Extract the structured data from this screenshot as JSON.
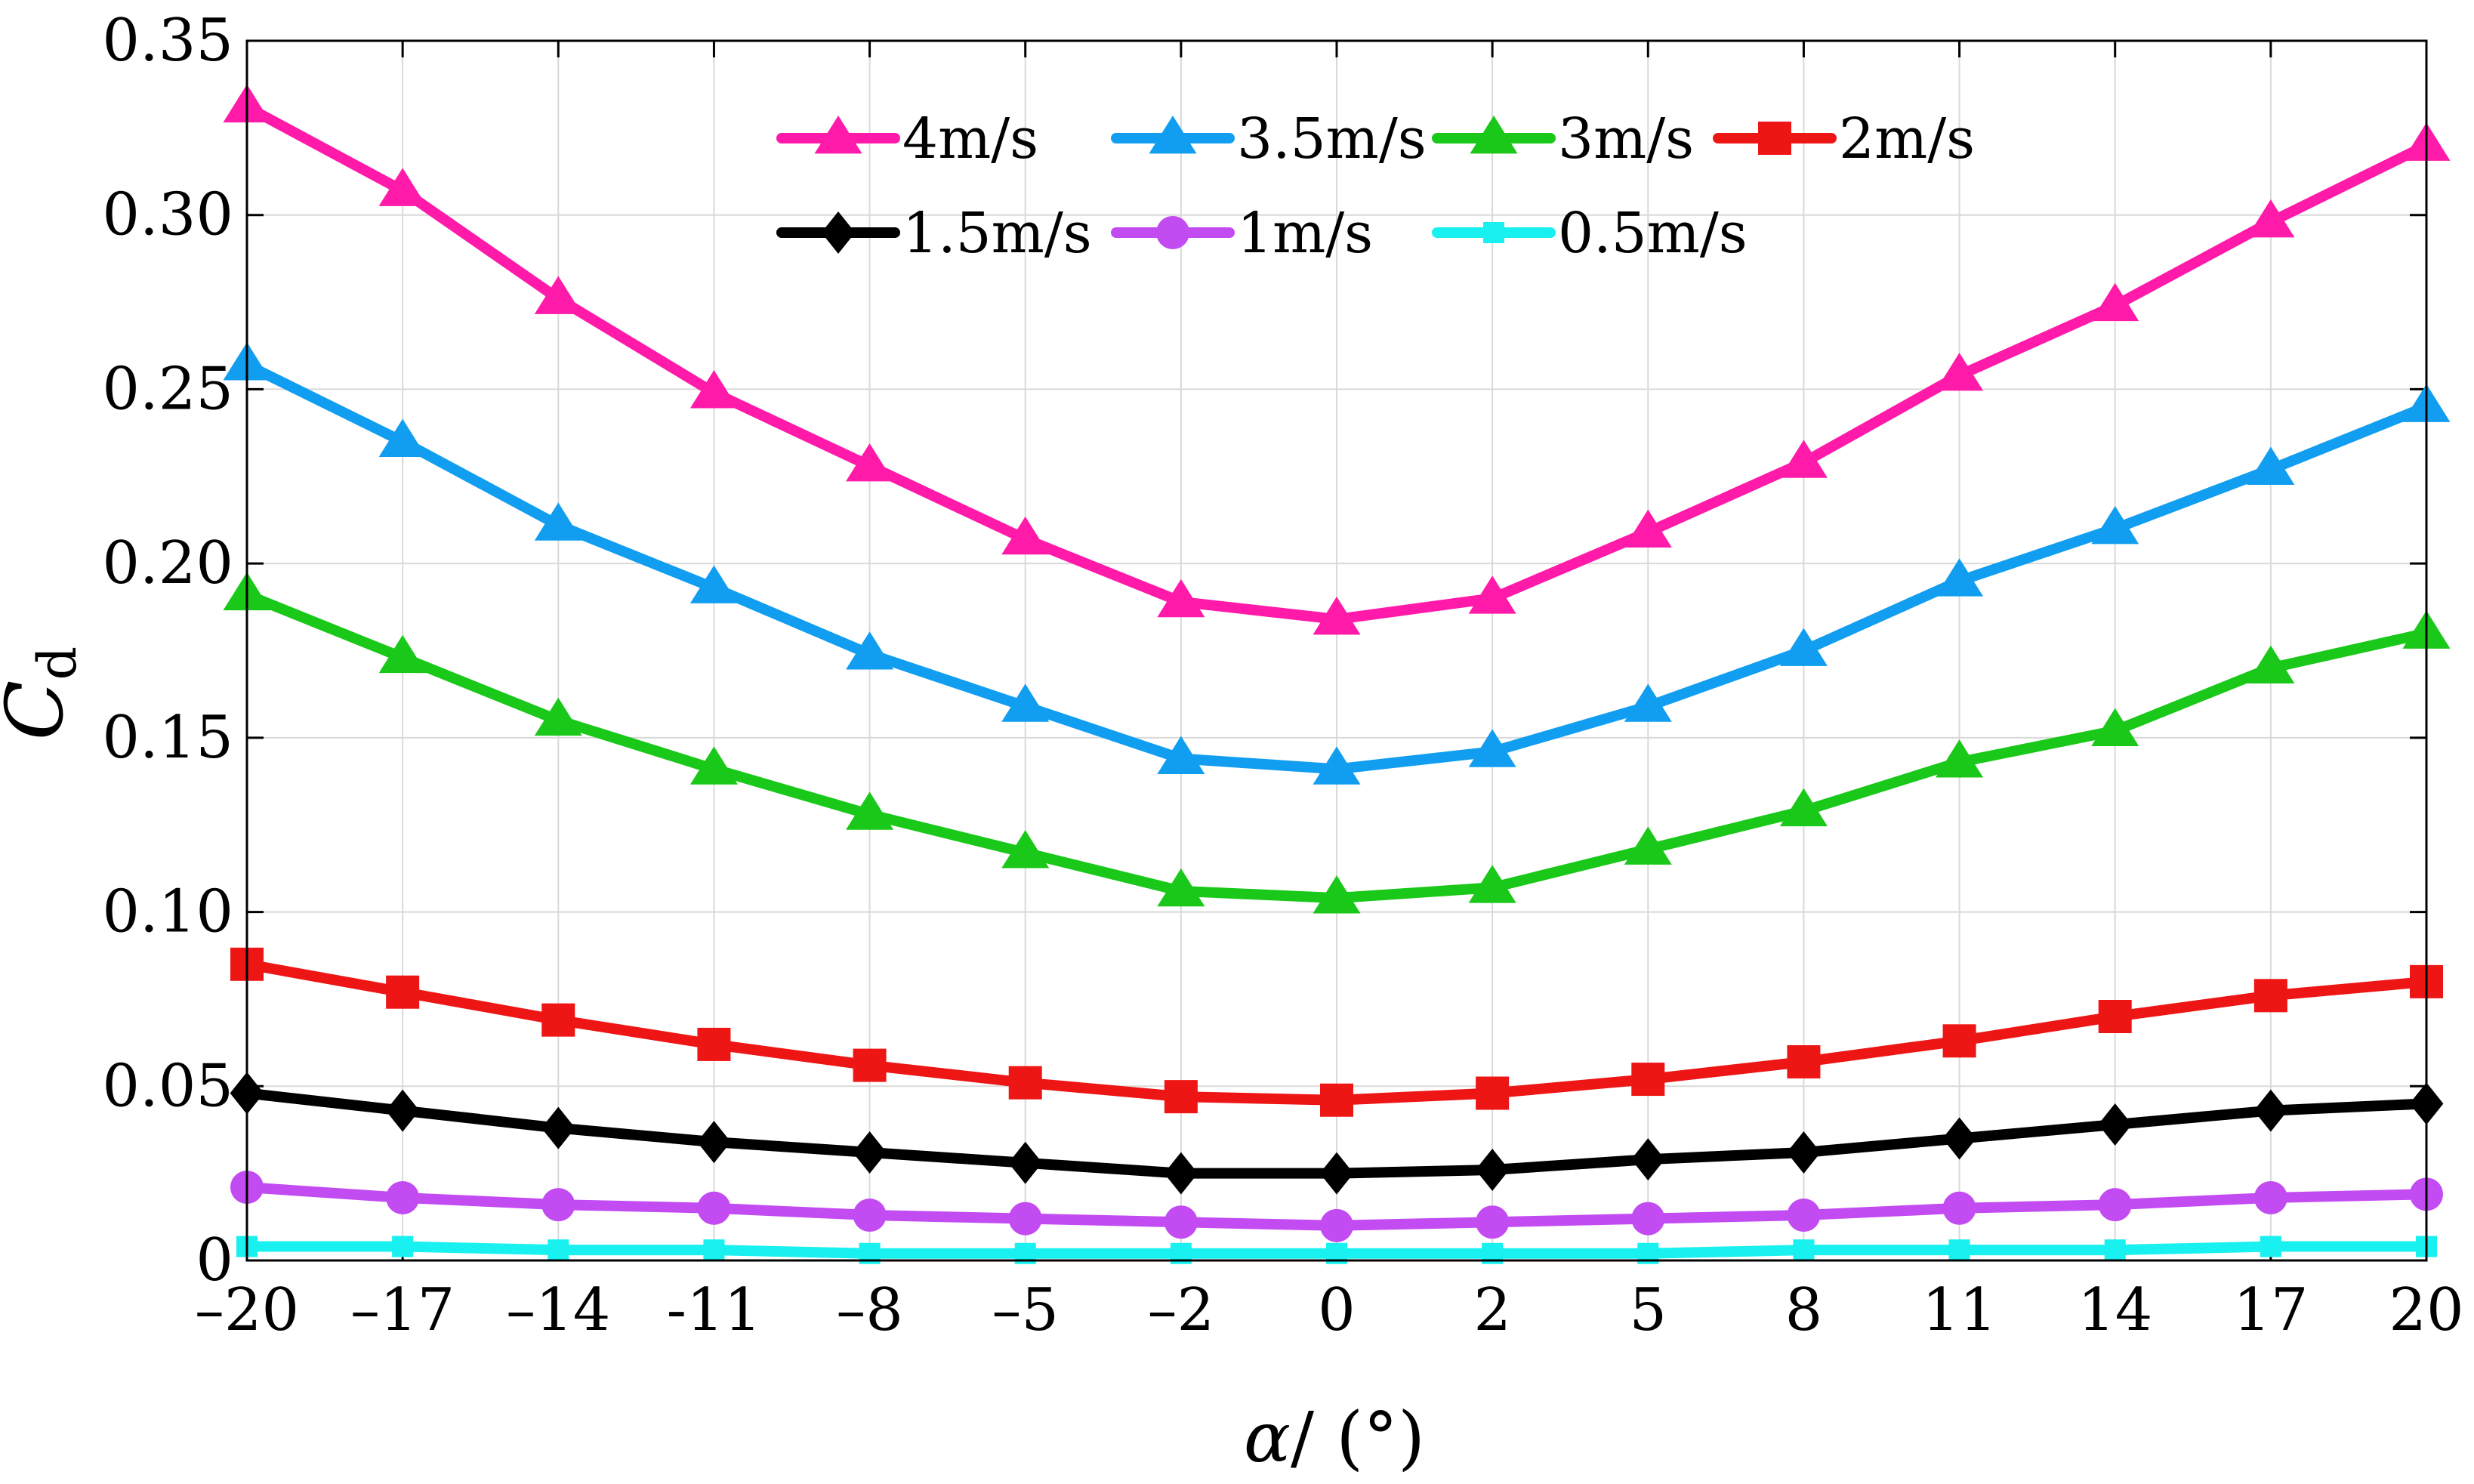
{
  "chart_data": {
    "type": "line",
    "xlabel": "α/ (°)",
    "ylabel": "C_d",
    "ylabel_main": "C",
    "ylabel_sub": "d",
    "xlabel_main": "α",
    "xlabel_rest": "/ (°)",
    "x": [
      -20,
      -17,
      -14,
      -11,
      -8,
      -5,
      -2,
      0,
      2,
      5,
      8,
      11,
      14,
      17,
      20
    ],
    "x_tick_labels": [
      "–20",
      "–17",
      "–14",
      "-11",
      "–8",
      "–5",
      "–2",
      "0",
      "2",
      "5",
      "8",
      "11",
      "14",
      "17",
      "20"
    ],
    "xlim": [
      -20,
      20
    ],
    "ylim": [
      0,
      0.35
    ],
    "y_ticks": [
      0,
      0.05,
      0.1,
      0.15,
      0.2,
      0.25,
      0.3,
      0.35
    ],
    "y_tick_labels": [
      "0",
      "0.05",
      "0.10",
      "0.15",
      "0.20",
      "0.25",
      "0.30",
      "0.35"
    ],
    "grid": true,
    "legend_position": "top",
    "series": [
      {
        "name": "4m/s",
        "color": "#ff1aaa",
        "marker": "triangle",
        "values": [
          0.331,
          0.307,
          0.276,
          0.249,
          0.228,
          0.207,
          0.189,
          0.184,
          0.19,
          0.209,
          0.229,
          0.254,
          0.274,
          0.298,
          0.32
        ]
      },
      {
        "name": "3.5m/s",
        "color": "#129ef0",
        "marker": "triangle",
        "values": [
          0.257,
          0.235,
          0.211,
          0.193,
          0.174,
          0.159,
          0.144,
          0.141,
          0.146,
          0.159,
          0.175,
          0.195,
          0.21,
          0.227,
          0.245
        ]
      },
      {
        "name": "3m/s",
        "color": "#19c819",
        "marker": "triangle",
        "values": [
          0.191,
          0.173,
          0.155,
          0.141,
          0.128,
          0.117,
          0.106,
          0.104,
          0.107,
          0.118,
          0.129,
          0.143,
          0.152,
          0.17,
          0.18
        ]
      },
      {
        "name": "2m/s",
        "color": "#ee1515",
        "marker": "square",
        "values": [
          0.085,
          0.077,
          0.069,
          0.062,
          0.056,
          0.051,
          0.047,
          0.046,
          0.048,
          0.052,
          0.057,
          0.063,
          0.07,
          0.076,
          0.08
        ]
      },
      {
        "name": "1.5m/s",
        "color": "#000000",
        "marker": "diamond",
        "values": [
          0.048,
          0.043,
          0.038,
          0.034,
          0.031,
          0.028,
          0.025,
          0.025,
          0.026,
          0.029,
          0.031,
          0.035,
          0.039,
          0.043,
          0.045
        ]
      },
      {
        "name": "1m/s",
        "color": "#c24bf2",
        "marker": "circle",
        "values": [
          0.021,
          0.018,
          0.016,
          0.015,
          0.013,
          0.012,
          0.011,
          0.01,
          0.011,
          0.012,
          0.013,
          0.015,
          0.016,
          0.018,
          0.019
        ]
      },
      {
        "name": "0.5m/s",
        "color": "#19f0f0",
        "marker": "square-small",
        "values": [
          0.004,
          0.004,
          0.003,
          0.003,
          0.002,
          0.002,
          0.002,
          0.002,
          0.002,
          0.002,
          0.003,
          0.003,
          0.003,
          0.004,
          0.004
        ]
      }
    ]
  }
}
